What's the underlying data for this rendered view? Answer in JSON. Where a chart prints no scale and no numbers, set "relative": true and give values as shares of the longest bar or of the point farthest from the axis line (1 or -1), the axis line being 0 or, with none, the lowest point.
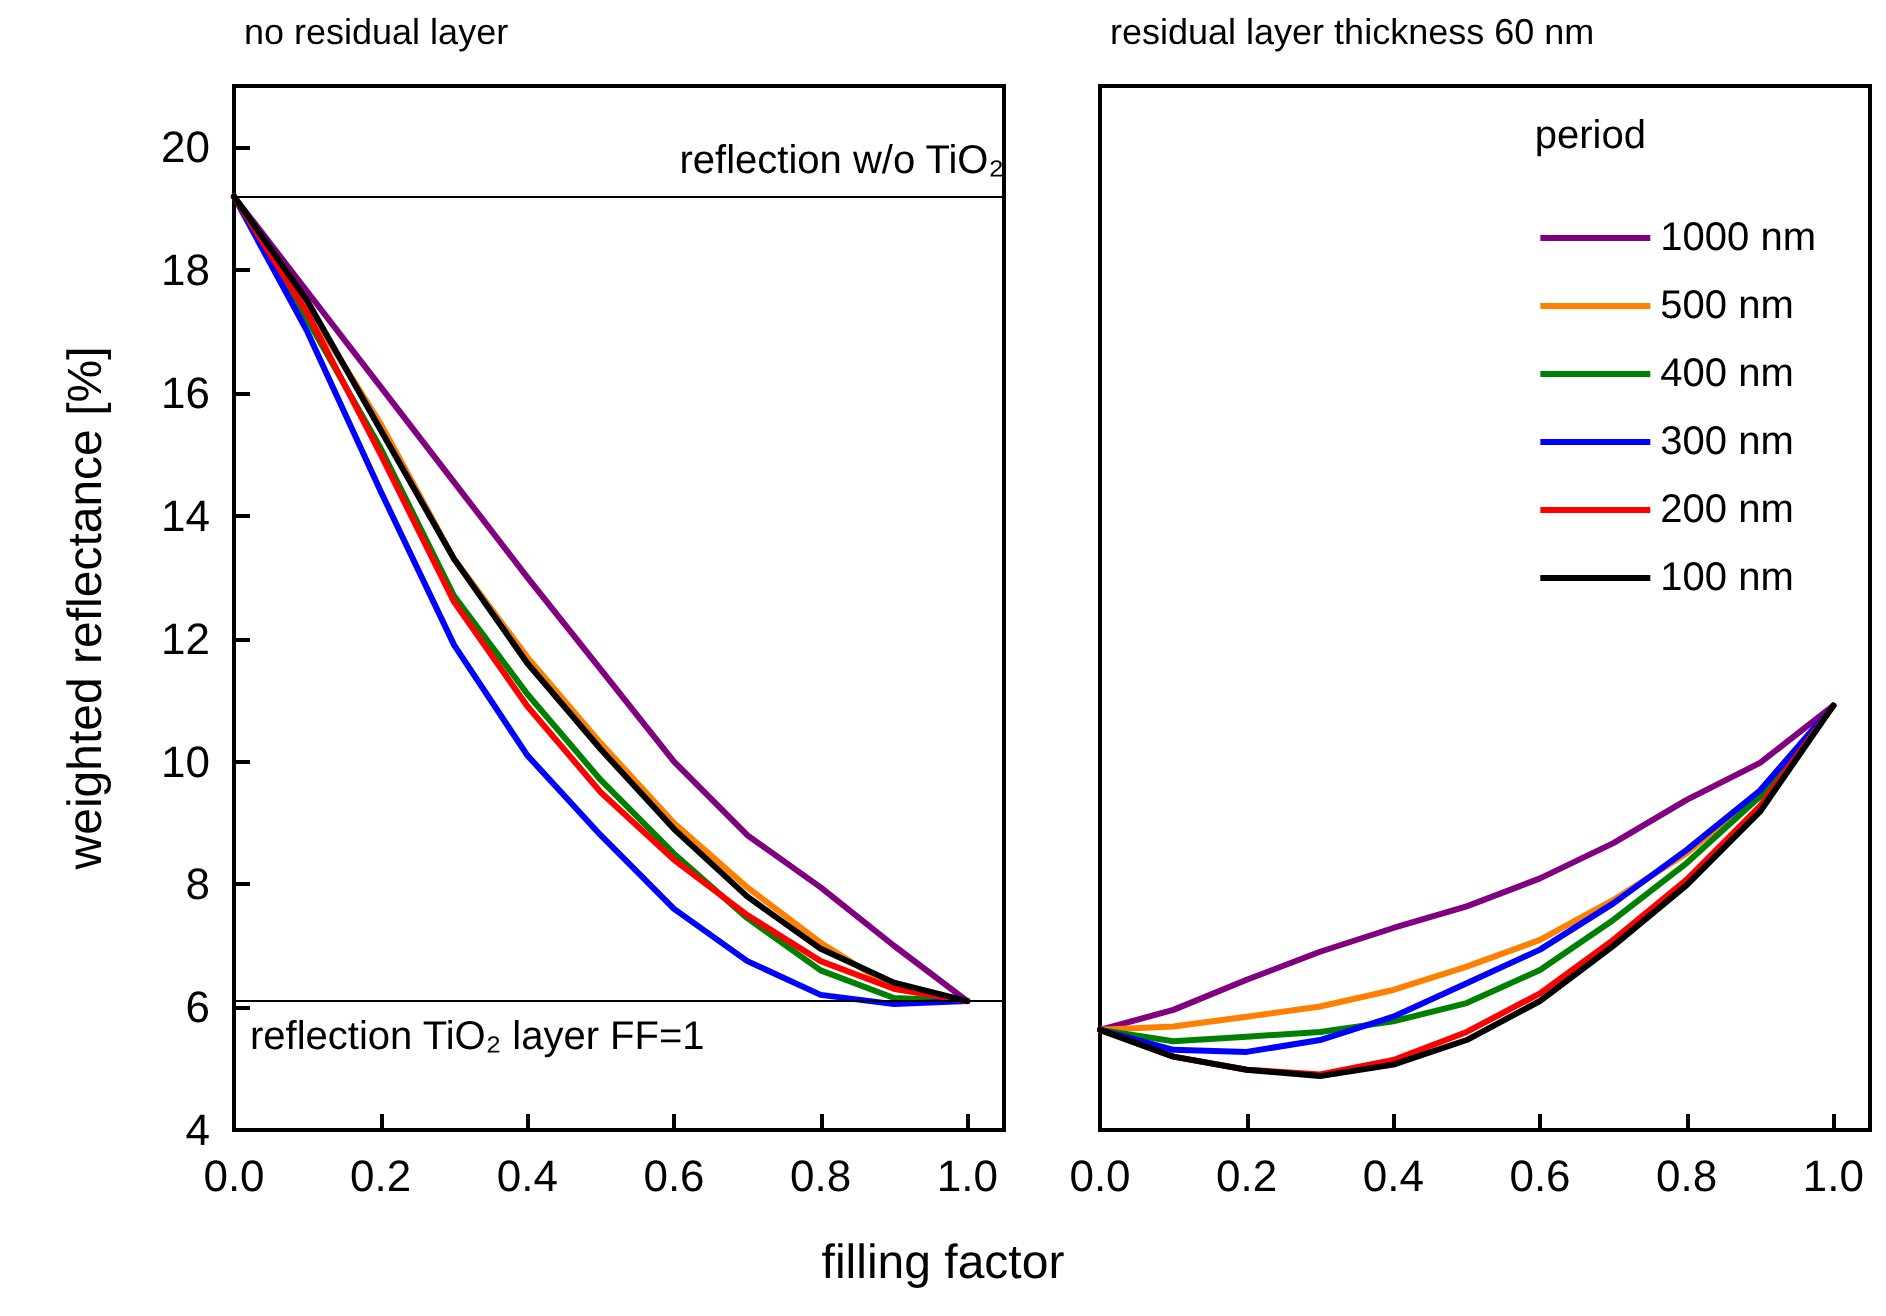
{
  "chart_data": [
    {
      "type": "line",
      "title": "no residual layer",
      "xlabel": "filling factor",
      "ylabel": "weighted reflectance [%]",
      "x": [
        0,
        0.1,
        0.2,
        0.3,
        0.4,
        0.5,
        0.6,
        0.7,
        0.8,
        0.9,
        1.0
      ],
      "series": [
        {
          "color": "#800080",
          "values": [
            19.2,
            17.65,
            16.1,
            14.55,
            13.0,
            11.5,
            10.0,
            8.8,
            7.95,
            7.0,
            6.1
          ]
        },
        {
          "color": "#ff8000",
          "values": [
            19.2,
            17.4,
            15.5,
            13.3,
            11.7,
            10.3,
            9.0,
            7.95,
            7.05,
            6.3,
            6.1
          ]
        },
        {
          "color": "#008000",
          "values": [
            19.2,
            17.2,
            15.1,
            12.7,
            11.1,
            9.7,
            8.5,
            7.45,
            6.6,
            6.15,
            6.1
          ]
        },
        {
          "color": "#0000ff",
          "values": [
            19.2,
            17.0,
            14.4,
            11.9,
            10.1,
            8.8,
            7.6,
            6.75,
            6.2,
            6.05,
            6.1
          ]
        },
        {
          "color": "#ff0000",
          "values": [
            19.2,
            17.3,
            15.0,
            12.6,
            10.9,
            9.5,
            8.4,
            7.5,
            6.75,
            6.3,
            6.1
          ]
        },
        {
          "color": "#000000",
          "values": [
            19.2,
            17.5,
            15.4,
            13.3,
            11.6,
            10.2,
            8.9,
            7.8,
            6.95,
            6.4,
            6.1
          ]
        }
      ],
      "xlim": [
        0,
        1.05
      ],
      "xticks": [
        {
          "value": 0,
          "label": "0.0"
        },
        {
          "value": 0.2,
          "label": "0.2"
        },
        {
          "value": 0.4,
          "label": "0.4"
        },
        {
          "value": 0.6,
          "label": "0.6"
        },
        {
          "value": 0.8,
          "label": "0.8"
        },
        {
          "value": 1,
          "label": "1.0"
        }
      ],
      "ylim": [
        4,
        21
      ],
      "yticks": [
        4,
        6,
        8,
        10,
        12,
        14,
        16,
        18,
        20
      ],
      "ref_lines": [
        {
          "axis": "y",
          "value": 19.2,
          "label": "reflection w/o TiO₂",
          "color": "#000000"
        },
        {
          "axis": "y",
          "value": 6.1,
          "color": "#000000"
        }
      ],
      "annotations": [
        {
          "text": "reflection TiO₂ layer FF=1",
          "x": 0,
          "y": 6.1
        }
      ]
    },
    {
      "type": "line",
      "title": "residual layer thickness 60 nm",
      "relative": true,
      "legend": "top right",
      "legend_title": "period",
      "tick_labels": "x",
      "x": [
        0,
        0.1,
        0.2,
        0.3,
        0.4,
        0.5,
        0.6,
        0.7,
        0.8,
        0.9,
        1.0
      ],
      "series": [
        {
          "name": "1000 nm",
          "color": "#800080",
          "values": [
            0.236,
            0.283,
            0.354,
            0.42,
            0.476,
            0.527,
            0.593,
            0.676,
            0.778,
            0.865,
            1
          ]
        },
        {
          "name": "500 nm",
          "color": "#ff8000",
          "values": [
            0.236,
            0.244,
            0.267,
            0.291,
            0.33,
            0.385,
            0.448,
            0.542,
            0.652,
            0.794,
            1
          ]
        },
        {
          "name": "400 nm",
          "color": "#008000",
          "values": [
            0.236,
            0.209,
            0.22,
            0.231,
            0.256,
            0.299,
            0.377,
            0.495,
            0.629,
            0.786,
            1
          ]
        },
        {
          "name": "300 nm",
          "color": "#0000ff",
          "values": [
            0.236,
            0.189,
            0.184,
            0.212,
            0.267,
            0.346,
            0.425,
            0.534,
            0.66,
            0.8,
            1
          ]
        },
        {
          "name": "200 nm",
          "color": "#ff0000",
          "values": [
            0.236,
            0.173,
            0.142,
            0.131,
            0.165,
            0.231,
            0.322,
            0.448,
            0.59,
            0.763,
            1
          ]
        },
        {
          "name": "100 nm",
          "color": "#000000",
          "values": [
            0.236,
            0.173,
            0.142,
            0.127,
            0.154,
            0.212,
            0.304,
            0.434,
            0.577,
            0.75,
            1
          ]
        }
      ],
      "xlim": [
        0,
        1.05
      ],
      "xticks": [
        {
          "value": 0,
          "label": "0.0"
        },
        {
          "value": 0.2,
          "label": "0.2"
        },
        {
          "value": 0.4,
          "label": "0.4"
        },
        {
          "value": 0.6,
          "label": "0.6"
        },
        {
          "value": 0.8,
          "label": "0.8"
        },
        {
          "value": 1,
          "label": "1.0"
        }
      ]
    }
  ]
}
